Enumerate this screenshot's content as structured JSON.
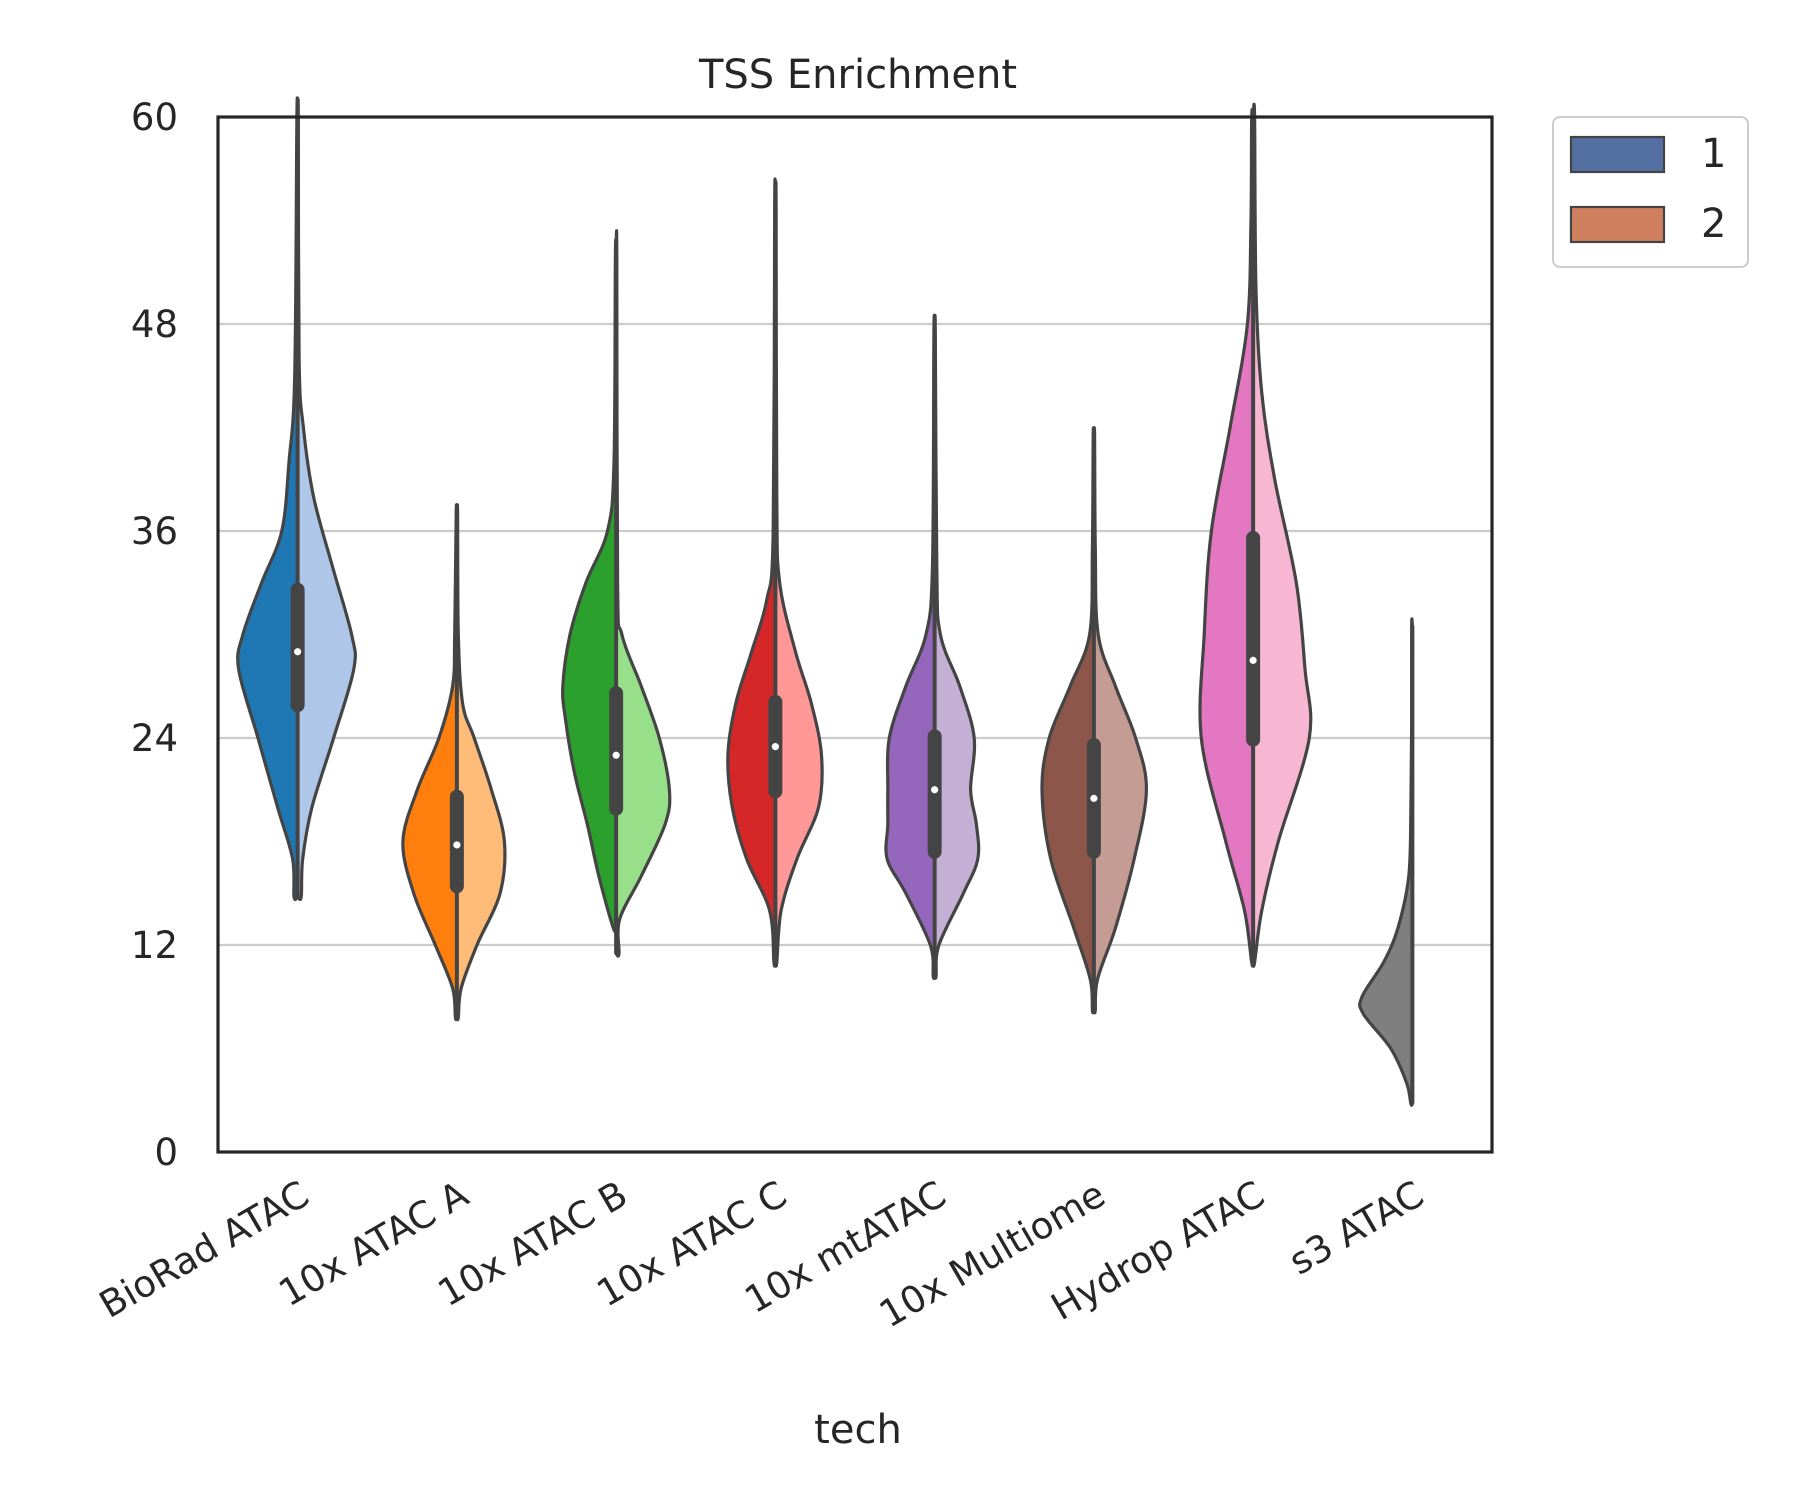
{
  "chart_data": {
    "type": "violin",
    "title": "TSS Enrichment",
    "xlabel": "tech",
    "ylabel": "",
    "ylim": [
      0,
      60
    ],
    "yticks": [
      "0",
      "12",
      "24",
      "36",
      "48",
      "60"
    ],
    "grid": "horizontal",
    "split": true,
    "legend": {
      "placement": "outside upper-right",
      "entries": [
        {
          "label": "1",
          "color": "#5470a3"
        },
        {
          "label": "2",
          "color": "#d1805f"
        }
      ]
    },
    "categories": [
      "BioRad ATAC",
      "10x ATAC A",
      "10x ATAC B",
      "10x ATAC C",
      "10x mtATAC",
      "10x Multiome",
      "Hydrop ATAC",
      "s3 ATAC"
    ],
    "violins": [
      {
        "category": "BioRad ATAC",
        "color_left": "#1f77b4",
        "color_right": "#aec7e8",
        "min": 14.8,
        "max": 60,
        "q1": 25.5,
        "median": 29.0,
        "q3": 33.0,
        "left_profile": [
          [
            14.8,
            0.05
          ],
          [
            17,
            0.07
          ],
          [
            20,
            0.28
          ],
          [
            24,
            0.55
          ],
          [
            28,
            0.82
          ],
          [
            30,
            0.76
          ],
          [
            33,
            0.5
          ],
          [
            36,
            0.22
          ],
          [
            40,
            0.12
          ],
          [
            45,
            0.04
          ],
          [
            60,
            0.01
          ]
        ],
        "right_profile": [
          [
            14.8,
            0.05
          ],
          [
            17,
            0.07
          ],
          [
            20,
            0.2
          ],
          [
            24,
            0.5
          ],
          [
            28,
            0.78
          ],
          [
            30,
            0.75
          ],
          [
            34,
            0.48
          ],
          [
            38,
            0.22
          ],
          [
            42,
            0.08
          ],
          [
            46,
            0.02
          ],
          [
            60,
            0.01
          ]
        ]
      },
      {
        "category": "10x ATAC A",
        "color_left": "#ff7f0e",
        "color_right": "#ffbb78",
        "min": 7.8,
        "max": 37,
        "q1": 15.0,
        "median": 17.8,
        "q3": 21.0,
        "left_profile": [
          [
            7.8,
            0.02
          ],
          [
            9.5,
            0.06
          ],
          [
            12,
            0.3
          ],
          [
            15,
            0.6
          ],
          [
            18,
            0.75
          ],
          [
            21,
            0.55
          ],
          [
            24,
            0.25
          ],
          [
            27,
            0.06
          ],
          [
            30,
            0.03
          ],
          [
            37,
            0.01
          ]
        ],
        "right_profile": [
          [
            7.8,
            0.02
          ],
          [
            9.5,
            0.06
          ],
          [
            12,
            0.28
          ],
          [
            15,
            0.6
          ],
          [
            18,
            0.66
          ],
          [
            21,
            0.48
          ],
          [
            24,
            0.24
          ],
          [
            26,
            0.08
          ],
          [
            30,
            0.02
          ],
          [
            37,
            0.01
          ]
        ]
      },
      {
        "category": "10x ATAC B",
        "color_left": "#2ca02c",
        "color_right": "#98df8a",
        "min": 11.5,
        "max": 52,
        "q1": 19.5,
        "median": 23.0,
        "q3": 27.0,
        "left_profile": [
          [
            13,
            0.04
          ],
          [
            16,
            0.24
          ],
          [
            19,
            0.4
          ],
          [
            22,
            0.58
          ],
          [
            25,
            0.7
          ],
          [
            27,
            0.74
          ],
          [
            30,
            0.64
          ],
          [
            33,
            0.42
          ],
          [
            36,
            0.12
          ],
          [
            40,
            0.03
          ],
          [
            52,
            0.01
          ]
        ],
        "right_profile": [
          [
            11.5,
            0.04
          ],
          [
            13.5,
            0.05
          ],
          [
            16,
            0.35
          ],
          [
            19,
            0.68
          ],
          [
            21,
            0.74
          ],
          [
            24,
            0.6
          ],
          [
            27,
            0.35
          ],
          [
            30,
            0.08
          ],
          [
            33,
            0.02
          ],
          [
            52,
            0.01
          ]
        ]
      },
      {
        "category": "10x ATAC C",
        "color_left": "#d62728",
        "color_right": "#ff9896",
        "min": 11.0,
        "max": 55,
        "q1": 20.5,
        "median": 23.5,
        "q3": 26.5,
        "left_profile": [
          [
            11,
            0.02
          ],
          [
            14,
            0.08
          ],
          [
            17,
            0.4
          ],
          [
            20,
            0.6
          ],
          [
            23,
            0.66
          ],
          [
            26,
            0.55
          ],
          [
            29,
            0.33
          ],
          [
            32,
            0.12
          ],
          [
            36,
            0.03
          ],
          [
            55,
            0.01
          ]
        ],
        "right_profile": [
          [
            11,
            0.02
          ],
          [
            14,
            0.08
          ],
          [
            17,
            0.3
          ],
          [
            20,
            0.6
          ],
          [
            23,
            0.64
          ],
          [
            26,
            0.5
          ],
          [
            29,
            0.28
          ],
          [
            33,
            0.06
          ],
          [
            38,
            0.02
          ],
          [
            55,
            0.01
          ]
        ]
      },
      {
        "category": "10x mtATAC",
        "color_left": "#9467bd",
        "color_right": "#c5b0d5",
        "min": 10.2,
        "max": 47.5,
        "q1": 17.0,
        "median": 21.0,
        "q3": 24.5,
        "left_profile": [
          [
            10.2,
            0.02
          ],
          [
            12,
            0.06
          ],
          [
            15,
            0.4
          ],
          [
            17,
            0.66
          ],
          [
            19,
            0.65
          ],
          [
            21,
            0.65
          ],
          [
            24,
            0.63
          ],
          [
            27,
            0.4
          ],
          [
            30,
            0.12
          ],
          [
            34,
            0.03
          ],
          [
            47.5,
            0.01
          ]
        ],
        "right_profile": [
          [
            10.2,
            0.02
          ],
          [
            12,
            0.06
          ],
          [
            15,
            0.4
          ],
          [
            17,
            0.6
          ],
          [
            19,
            0.58
          ],
          [
            21,
            0.5
          ],
          [
            24,
            0.55
          ],
          [
            27,
            0.35
          ],
          [
            30,
            0.08
          ],
          [
            34,
            0.03
          ],
          [
            47.5,
            0.01
          ]
        ]
      },
      {
        "category": "10x Multiome",
        "color_left": "#8c564b",
        "color_right": "#c49c94",
        "min": 8.2,
        "max": 41.5,
        "q1": 17.0,
        "median": 20.5,
        "q3": 24.0,
        "left_profile": [
          [
            8.2,
            0.02
          ],
          [
            10,
            0.05
          ],
          [
            13,
            0.28
          ],
          [
            17,
            0.6
          ],
          [
            21,
            0.72
          ],
          [
            24,
            0.62
          ],
          [
            27,
            0.33
          ],
          [
            30,
            0.06
          ],
          [
            35,
            0.02
          ],
          [
            41.5,
            0.01
          ]
        ],
        "right_profile": [
          [
            8.2,
            0.02
          ],
          [
            10,
            0.05
          ],
          [
            13,
            0.3
          ],
          [
            17,
            0.56
          ],
          [
            21,
            0.73
          ],
          [
            24,
            0.58
          ],
          [
            27,
            0.3
          ],
          [
            30,
            0.06
          ],
          [
            35,
            0.02
          ],
          [
            41.5,
            0.01
          ]
        ]
      },
      {
        "category": "Hydrop ATAC",
        "color_left": "#e377c2",
        "color_right": "#f7b6d2",
        "min": 11.0,
        "max": 60,
        "q1": 23.5,
        "median": 28.5,
        "q3": 36.0,
        "left_profile": [
          [
            11,
            0.02
          ],
          [
            14,
            0.12
          ],
          [
            18,
            0.38
          ],
          [
            24,
            0.72
          ],
          [
            30,
            0.68
          ],
          [
            36,
            0.58
          ],
          [
            42,
            0.32
          ],
          [
            48,
            0.08
          ],
          [
            54,
            0.03
          ],
          [
            60,
            0.02
          ]
        ],
        "right_profile": [
          [
            11,
            0.02
          ],
          [
            14,
            0.12
          ],
          [
            18,
            0.35
          ],
          [
            24,
            0.78
          ],
          [
            28,
            0.72
          ],
          [
            33,
            0.6
          ],
          [
            39,
            0.3
          ],
          [
            44,
            0.12
          ],
          [
            50,
            0.04
          ],
          [
            60,
            0.02
          ]
        ]
      },
      {
        "category": "s3 ATAC",
        "color_left": "#7f7f7f",
        "color_right": "#c7c7c7",
        "min": 2.8,
        "max": 30.5,
        "left_profile": [
          [
            2.8,
            0.02
          ],
          [
            4,
            0.08
          ],
          [
            6,
            0.3
          ],
          [
            8,
            0.68
          ],
          [
            9,
            0.7
          ],
          [
            11,
            0.4
          ],
          [
            13,
            0.2
          ],
          [
            16,
            0.05
          ],
          [
            20,
            0.02
          ],
          [
            25,
            0.01
          ],
          [
            30.5,
            0.01
          ]
        ],
        "right_profile": []
      }
    ]
  }
}
